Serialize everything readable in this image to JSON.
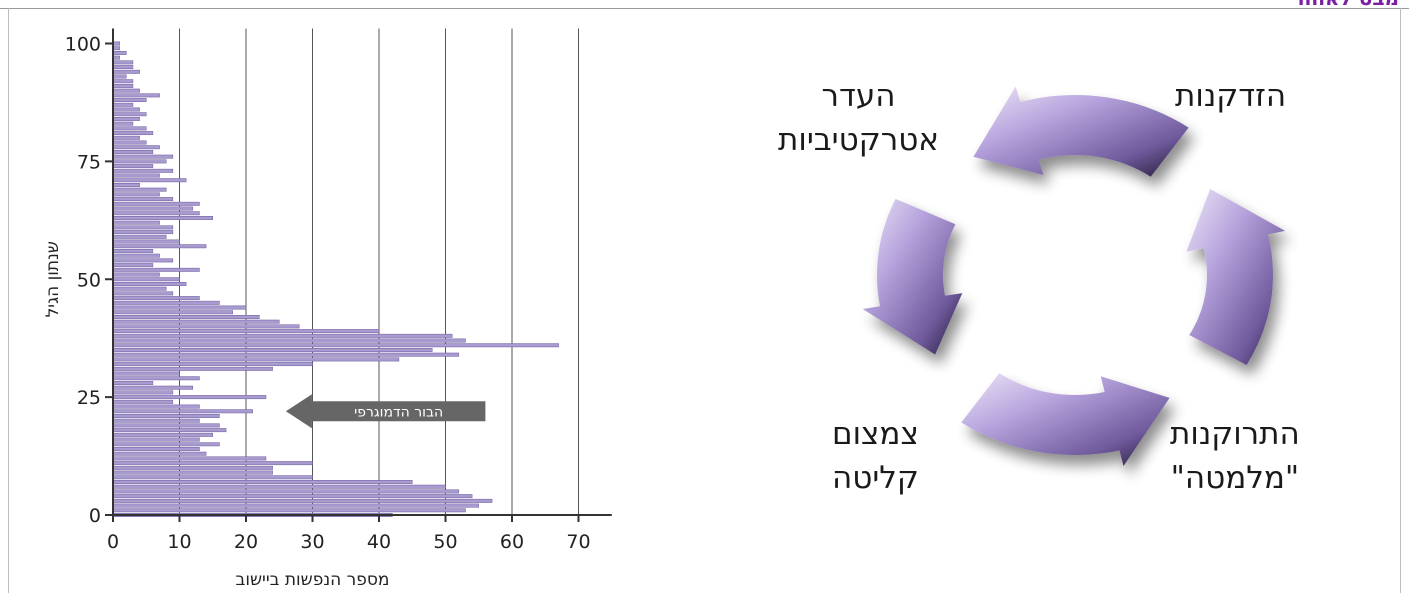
{
  "corner_title": "מבט לאחור",
  "chart_data": {
    "type": "bar",
    "orientation": "horizontal",
    "ylabel": "שנתון הגיל",
    "xlabel": "מספר הנפשות ביישוב",
    "x_ticks": [
      "0",
      "10",
      "20",
      "30",
      "40",
      "50",
      "60",
      "70"
    ],
    "y_ticks": [
      "0",
      "25",
      "50",
      "75",
      "100"
    ],
    "xlim": [
      0,
      75
    ],
    "ylim": [
      0,
      100
    ],
    "grid": "vertical",
    "bar_color": "#a99bd0",
    "bar_edge_color": "#6a5a9a",
    "ages": [
      0,
      1,
      2,
      3,
      4,
      5,
      6,
      7,
      8,
      9,
      10,
      11,
      12,
      13,
      14,
      15,
      16,
      17,
      18,
      19,
      20,
      21,
      22,
      23,
      24,
      25,
      26,
      27,
      28,
      29,
      30,
      31,
      32,
      33,
      34,
      35,
      36,
      37,
      38,
      39,
      40,
      41,
      42,
      43,
      44,
      45,
      46,
      47,
      48,
      49,
      50,
      51,
      52,
      53,
      54,
      55,
      56,
      57,
      58,
      59,
      60,
      61,
      62,
      63,
      64,
      65,
      66,
      67,
      68,
      69,
      70,
      71,
      72,
      73,
      74,
      75,
      76,
      77,
      78,
      79,
      80,
      81,
      82,
      83,
      84,
      85,
      86,
      87,
      88,
      89,
      90,
      91,
      92,
      93,
      94,
      95,
      96,
      97,
      98,
      99,
      100
    ],
    "values": [
      42,
      53,
      55,
      57,
      54,
      52,
      50,
      45,
      30,
      24,
      24,
      30,
      23,
      14,
      13,
      16,
      13,
      15,
      17,
      16,
      13,
      16,
      21,
      13,
      9,
      23,
      9,
      12,
      6,
      13,
      10,
      24,
      30,
      43,
      52,
      48,
      67,
      53,
      51,
      40,
      28,
      25,
      22,
      18,
      20,
      16,
      13,
      9,
      8,
      11,
      10,
      7,
      13,
      6,
      9,
      7,
      6,
      14,
      10,
      8,
      9,
      9,
      7,
      15,
      13,
      12,
      13,
      9,
      7,
      8,
      4,
      11,
      7,
      9,
      6,
      8,
      9,
      6,
      7,
      5,
      4,
      6,
      5,
      3,
      4,
      5,
      4,
      3,
      5,
      7,
      4,
      3,
      3,
      2,
      4,
      3,
      3,
      1,
      2,
      1,
      1
    ],
    "annotation": "הבור הדמוגרפי"
  },
  "cycle": {
    "labels": [
      {
        "lines": [
          "הזדקנות"
        ]
      },
      {
        "lines": [
          "העדר",
          "אטרקטיביות"
        ]
      },
      {
        "lines": [
          "צמצום",
          "קליטה"
        ]
      },
      {
        "lines": [
          "התרוקנות",
          "\"מלמטה\""
        ]
      }
    ]
  }
}
